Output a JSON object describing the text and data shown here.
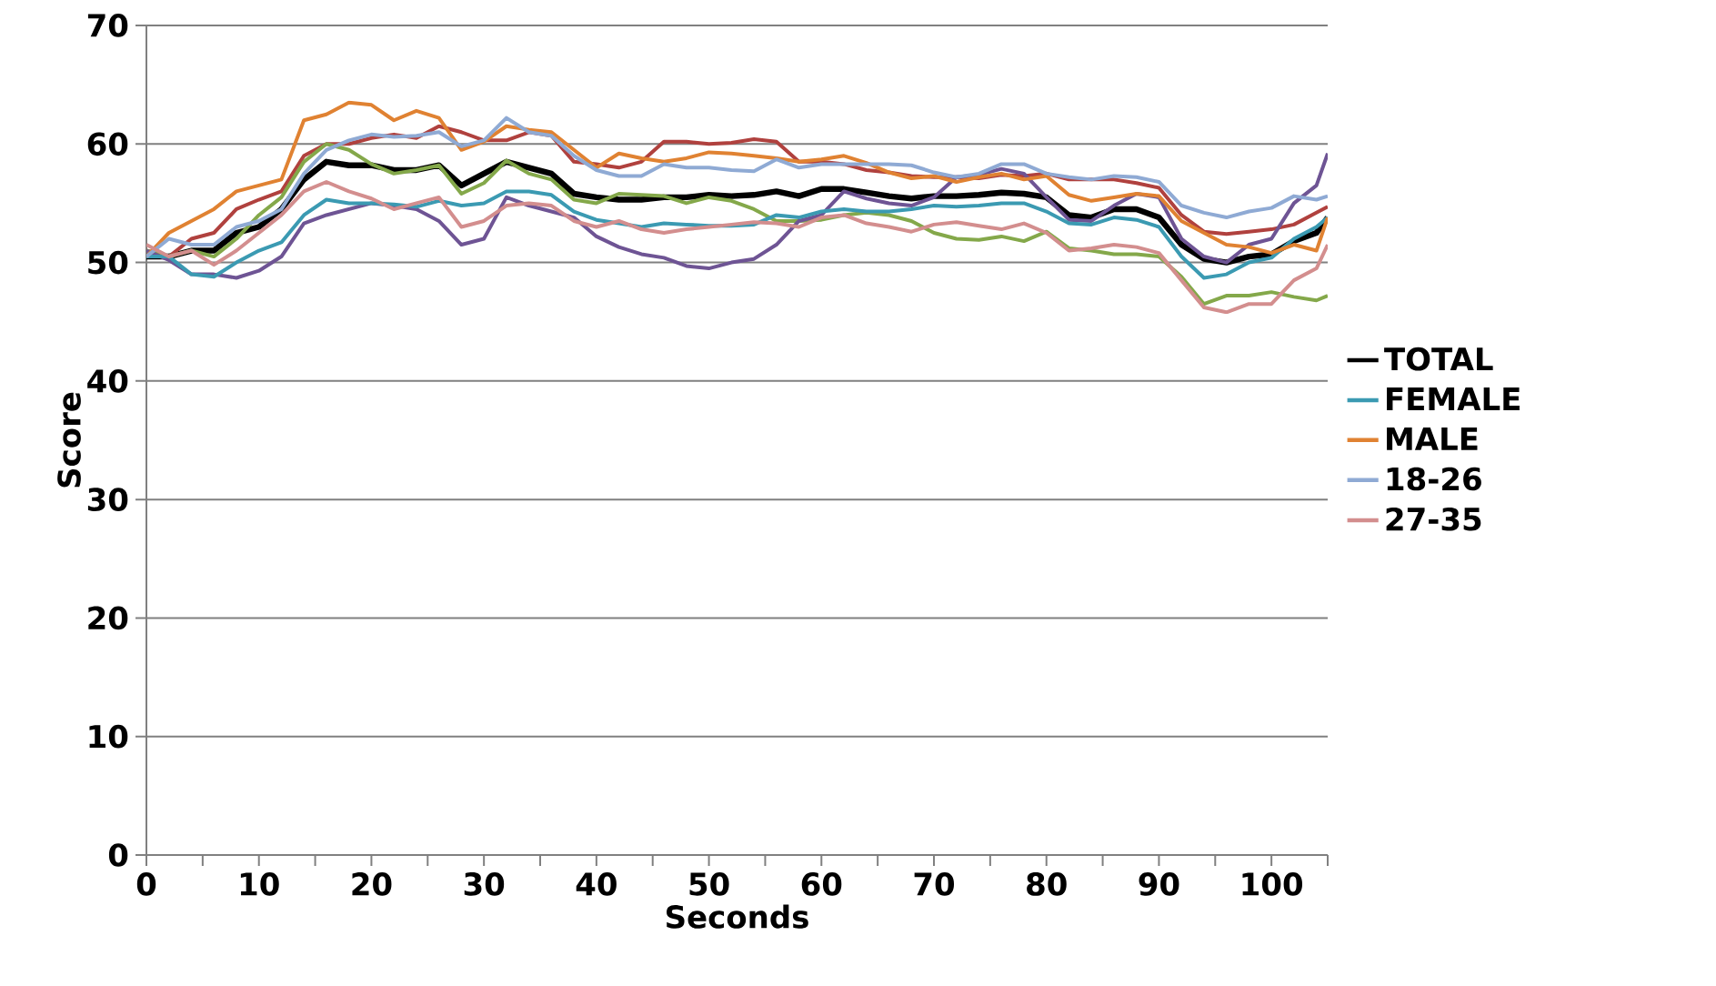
{
  "chart_data": {
    "type": "line",
    "xlabel": "Seconds",
    "ylabel": "Score",
    "x": [
      0,
      2,
      4,
      6,
      8,
      10,
      12,
      14,
      16,
      18,
      20,
      22,
      24,
      26,
      28,
      30,
      32,
      34,
      36,
      38,
      40,
      42,
      44,
      46,
      48,
      50,
      52,
      54,
      56,
      58,
      60,
      62,
      64,
      66,
      68,
      70,
      72,
      74,
      76,
      78,
      80,
      82,
      84,
      86,
      88,
      90,
      92,
      94,
      96,
      98,
      100,
      102,
      104,
      105
    ],
    "xlim": [
      0,
      105
    ],
    "xticks": [
      0,
      {
        "value": 5,
        "label": null
      },
      10,
      {
        "value": 15,
        "label": null
      },
      20,
      {
        "value": 25,
        "label": null
      },
      30,
      {
        "value": 35,
        "label": null
      },
      40,
      {
        "value": 45,
        "label": null
      },
      50,
      {
        "value": 55,
        "label": null
      },
      60,
      {
        "value": 65,
        "label": null
      },
      70,
      {
        "value": 75,
        "label": null
      },
      80,
      {
        "value": 85,
        "label": null
      },
      90,
      {
        "value": 95,
        "label": null
      },
      100,
      {
        "value": 105,
        "label": null
      }
    ],
    "ylim": [
      0,
      70
    ],
    "yticks": [
      0,
      10,
      20,
      30,
      40,
      50,
      60,
      70
    ],
    "grid": "y",
    "legend": "right",
    "series": [
      {
        "name": "TOTAL",
        "color": "#000000",
        "values": [
          50.5,
          50.5,
          51,
          51,
          52.5,
          53,
          54.5,
          57,
          58.5,
          58.2,
          58.2,
          57.8,
          57.8,
          58.2,
          56.5,
          57.5,
          58.5,
          58,
          57.5,
          55.8,
          55.5,
          55.3,
          55.3,
          55.5,
          55.5,
          55.7,
          55.6,
          55.7,
          56,
          55.6,
          56.2,
          56.2,
          55.9,
          55.6,
          55.4,
          55.6,
          55.6,
          55.7,
          55.9,
          55.8,
          55.5,
          54,
          53.8,
          54.5,
          54.5,
          53.8,
          51.5,
          50.3,
          50,
          50.5,
          50.7,
          51.8,
          52.5,
          53.8
        ]
      },
      {
        "color": "#b0413e",
        "values": [
          51,
          50.5,
          52,
          52.5,
          54.5,
          55.3,
          56,
          59,
          60,
          60,
          60.5,
          60.8,
          60.5,
          61.5,
          61,
          60.3,
          60.3,
          61,
          60.7,
          58.5,
          58.3,
          58,
          58.5,
          60.2,
          60.2,
          60,
          60.1,
          60.4,
          60.2,
          58.5,
          58.5,
          58.3,
          57.8,
          57.6,
          57.3,
          57.2,
          57.2,
          57.1,
          57.4,
          57.3,
          57.5,
          57,
          57,
          57,
          56.7,
          56.3,
          54,
          52.6,
          52.4,
          52.6,
          52.8,
          53.2,
          54.2,
          54.7
        ]
      },
      {
        "color": "#84a84a",
        "values": [
          51,
          50.5,
          51,
          50.5,
          52,
          54,
          55.5,
          58.5,
          60,
          59.5,
          58.3,
          57.5,
          57.8,
          58.2,
          55.8,
          56.7,
          58.6,
          57.5,
          57,
          55.3,
          55,
          55.8,
          55.7,
          55.6,
          55,
          55.5,
          55.2,
          54.5,
          53.5,
          53.5,
          53.6,
          54,
          54.2,
          54,
          53.5,
          52.5,
          52,
          51.9,
          52.2,
          51.8,
          52.6,
          51.2,
          51,
          50.7,
          50.7,
          50.5,
          48.8,
          46.5,
          47.2,
          47.2,
          47.5,
          47.1,
          46.8,
          47.2
        ]
      },
      {
        "color": "#6e5494",
        "values": [
          51,
          50.2,
          49,
          49,
          48.7,
          49.3,
          50.5,
          53.3,
          54,
          54.5,
          55,
          54.8,
          54.5,
          53.5,
          51.5,
          52,
          55.5,
          54.8,
          54.3,
          53.8,
          52.2,
          51.3,
          50.7,
          50.4,
          49.7,
          49.5,
          50,
          50.3,
          51.5,
          53.5,
          54,
          56,
          55.4,
          55,
          54.8,
          55.5,
          57.2,
          57.4,
          57.9,
          57.5,
          55.5,
          53.6,
          53.5,
          54.8,
          55.8,
          55.5,
          52,
          50.5,
          50,
          51.5,
          52,
          55,
          56.5,
          59.2
        ]
      },
      {
        "name": "FEMALE",
        "color": "#3b9ab2",
        "values": [
          50.5,
          50.5,
          49,
          48.8,
          50,
          51,
          51.7,
          54,
          55.3,
          55,
          55,
          54.9,
          54.7,
          55.2,
          54.8,
          55,
          56,
          56,
          55.7,
          54.3,
          53.6,
          53.3,
          53,
          53.3,
          53.2,
          53.1,
          53.1,
          53.2,
          54,
          53.8,
          54.3,
          54.5,
          54.3,
          54.3,
          54.5,
          54.8,
          54.7,
          54.8,
          55,
          55,
          54.3,
          53.3,
          53.2,
          53.8,
          53.6,
          53,
          50.5,
          48.7,
          49,
          50,
          50.4,
          52,
          53,
          53.8
        ]
      },
      {
        "name": "MALE",
        "color": "#e08232",
        "values": [
          50.5,
          52.5,
          53.5,
          54.5,
          56,
          56.5,
          57,
          62,
          62.5,
          63.5,
          63.3,
          62,
          62.8,
          62.2,
          59.5,
          60.2,
          61.5,
          61.2,
          61,
          59.5,
          58,
          59.2,
          58.8,
          58.5,
          58.8,
          59.3,
          59.2,
          59,
          58.8,
          58.5,
          58.7,
          59,
          58.4,
          57.6,
          57.1,
          57.3,
          56.8,
          57.2,
          57.5,
          57,
          57.3,
          55.7,
          55.2,
          55.5,
          55.8,
          55.6,
          53.5,
          52.5,
          51.5,
          51.3,
          50.8,
          51.5,
          51,
          53.8
        ]
      },
      {
        "name": "18-26",
        "color": "#8faad4",
        "values": [
          50.5,
          52,
          51.5,
          51.5,
          53,
          53.5,
          54.5,
          57.5,
          59.5,
          60.3,
          60.8,
          60.6,
          60.7,
          61,
          59.8,
          60.3,
          62.2,
          61,
          60.7,
          59,
          57.8,
          57.3,
          57.3,
          58.3,
          58,
          58,
          57.8,
          57.7,
          58.7,
          58,
          58.3,
          58.3,
          58.3,
          58.3,
          58.2,
          57.6,
          57.2,
          57.5,
          58.3,
          58.3,
          57.5,
          57.2,
          57,
          57.3,
          57.2,
          56.8,
          54.8,
          54.2,
          53.8,
          54.3,
          54.6,
          55.6,
          55.3,
          55.6
        ]
      },
      {
        "name": "27-35",
        "color": "#d38e8e",
        "values": [
          51.5,
          50.5,
          51,
          49.8,
          51,
          52.5,
          54,
          56,
          56.8,
          56,
          55.4,
          54.5,
          55,
          55.5,
          53,
          53.5,
          54.8,
          55,
          54.8,
          53.5,
          53,
          53.5,
          52.8,
          52.5,
          52.8,
          53,
          53.2,
          53.4,
          53.3,
          53,
          53.8,
          54,
          53.3,
          53,
          52.6,
          53.2,
          53.4,
          53.1,
          52.8,
          53.3,
          52.5,
          51,
          51.2,
          51.5,
          51.3,
          50.8,
          48.5,
          46.2,
          45.8,
          46.5,
          46.5,
          48.5,
          49.5,
          51.5
        ]
      }
    ]
  }
}
